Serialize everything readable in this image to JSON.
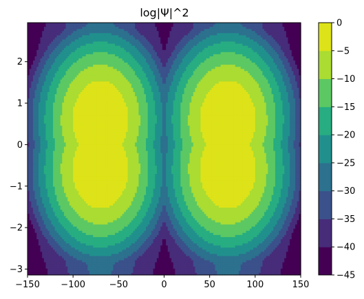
{
  "chart_data": {
    "type": "heatmap",
    "title": "log|Ψ|^2",
    "xlabel": "",
    "ylabel": "",
    "xlim": [
      -150,
      150
    ],
    "ylim": [
      -3.14159,
      2.94
    ],
    "x_ticks": [
      -150,
      -100,
      -50,
      0,
      50,
      100,
      150
    ],
    "x_tick_labels": [
      "−150",
      "−100",
      "−50",
      "0",
      "50",
      "100",
      "150"
    ],
    "y_ticks": [
      -3,
      -2,
      -1,
      0,
      1,
      2
    ],
    "y_tick_labels": [
      "−3",
      "−2",
      "−1",
      "0",
      "1",
      "2"
    ],
    "colorbar": {
      "levels": [
        -45,
        -40,
        -35,
        -30,
        -25,
        -20,
        -15,
        -10,
        -5,
        0
      ],
      "tick_labels": [
        "−45",
        "−40",
        "−35",
        "−30",
        "−25",
        "−20",
        "−15",
        "−10",
        "−5",
        "0"
      ],
      "colors": [
        "#440154",
        "#472c7a",
        "#3b518b",
        "#2c718e",
        "#21908d",
        "#27ad81",
        "#5cc863",
        "#aadc32",
        "#dde318"
      ]
    },
    "field": {
      "description_of_shape": "two lobes of maximal intensity centered near x=-70 and x=70 at y=0; each lobe is split into two peaks at y=±0.6; intensity decays with |x - center| and |y|",
      "lobes": [
        {
          "x_center": -70,
          "peaks_y": [
            -0.6,
            0.6
          ],
          "peak_value": 0
        },
        {
          "x_center": 70,
          "peaks_y": [
            -0.6,
            0.6
          ],
          "peak_value": 0
        }
      ],
      "min_value": -42
    },
    "grid": false,
    "legend": "colorbar-right"
  }
}
